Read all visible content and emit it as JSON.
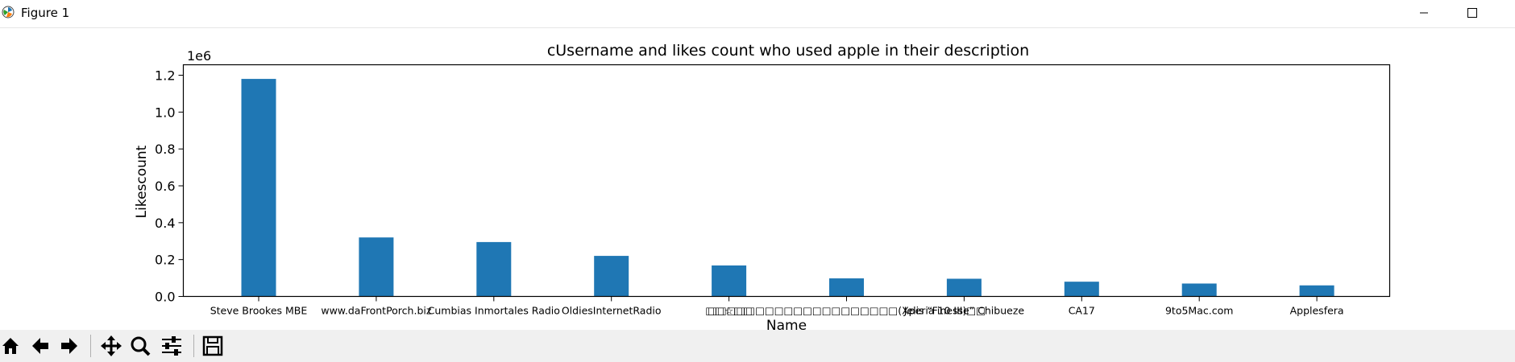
{
  "window": {
    "title": "Figure 1"
  },
  "chart_data": {
    "type": "bar",
    "title": "cUsername and likes count who used apple in their description",
    "xlabel": "Name",
    "ylabel": "Likescount",
    "offset_label": "1e6",
    "ylim": [
      0,
      1.25
    ],
    "yticks": [
      "0.0",
      "0.2",
      "0.4",
      "0.6",
      "0.8",
      "1.0",
      "1.2"
    ],
    "categories": [
      "Steve Brookes MBE",
      "www.daFrontPorch.biz",
      "Cumbias Inmortales Radio",
      "OldiesInternetRadio",
      "□□☆□□",
      "□□□□□□□□□□□□□□□□□□□□(Xperia 10 III)□□",
      "Jelis “Finesse” Chibueze",
      "CA17",
      "9to5Mac.com",
      "Applesfera"
    ],
    "values": [
      1.18,
      0.32,
      0.295,
      0.22,
      0.168,
      0.098,
      0.096,
      0.08,
      0.07,
      0.06
    ],
    "bar_color": "#1f77b4",
    "grid": false
  },
  "toolbar": {
    "items": [
      "home-icon",
      "back-arrow-icon",
      "forward-arrow-icon",
      "pan-icon",
      "zoom-icon",
      "configure-subplots-icon",
      "save-icon"
    ]
  }
}
